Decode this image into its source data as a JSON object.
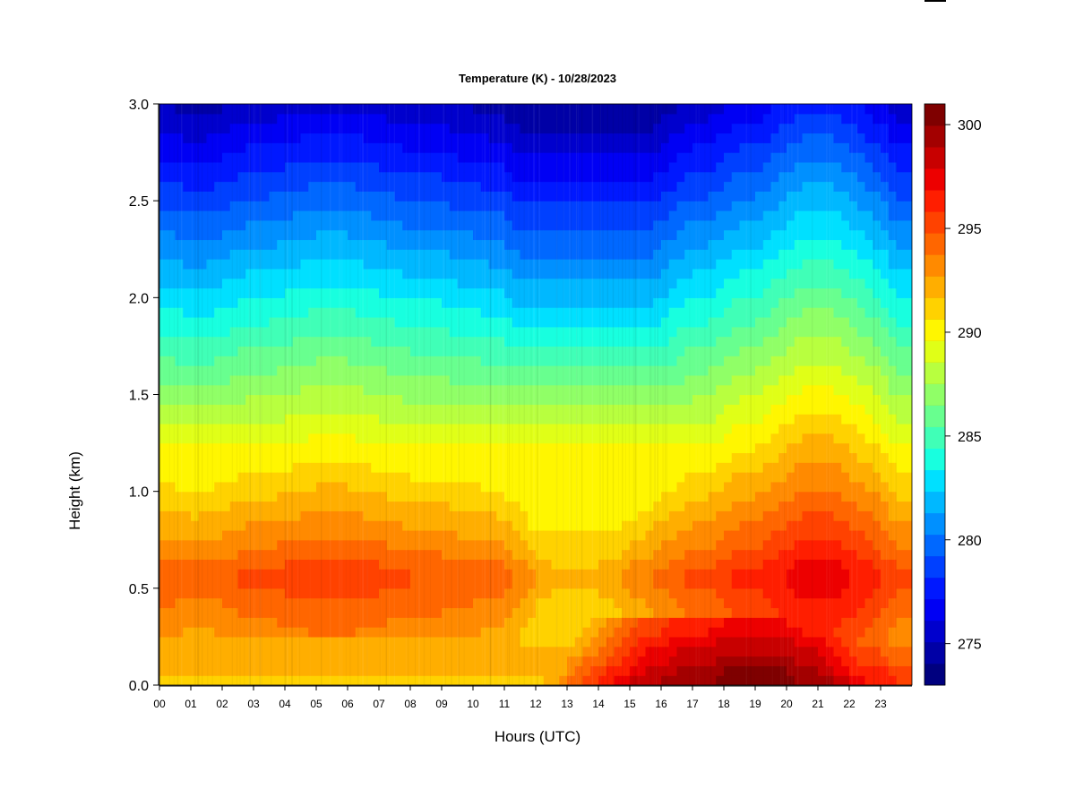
{
  "chart_data": {
    "type": "heatmap",
    "title": "Temperature (K) - 10/28/2023",
    "xlabel": "Hours (UTC)",
    "ylabel": "Height (km)",
    "xlim": [
      0,
      24
    ],
    "ylim": [
      0,
      3
    ],
    "x_ticks": [
      "00",
      "01",
      "02",
      "03",
      "04",
      "05",
      "06",
      "07",
      "08",
      "09",
      "10",
      "11",
      "12",
      "13",
      "14",
      "15",
      "16",
      "17",
      "18",
      "19",
      "20",
      "21",
      "22",
      "23"
    ],
    "y_ticks": [
      "0.0",
      "0.5",
      "1.0",
      "1.5",
      "2.0",
      "2.5",
      "3.0"
    ],
    "colorbar": {
      "min": 273,
      "max": 301,
      "ticks": [
        275,
        280,
        285,
        290,
        295,
        300
      ],
      "colors": [
        "#00007f",
        "#0000a6",
        "#0000cd",
        "#0000f4",
        "#0018ff",
        "#0040ff",
        "#0068ff",
        "#0090ff",
        "#00b8ff",
        "#00e0ff",
        "#18ffdf",
        "#40ffb7",
        "#68ff8f",
        "#90ff67",
        "#b8ff3f",
        "#e0ff17",
        "#fff600",
        "#ffd200",
        "#ffae00",
        "#ff8a00",
        "#ff6600",
        "#ff4200",
        "#ff1e00",
        "#ed0000",
        "#c80000",
        "#a30000",
        "#7f0000"
      ]
    },
    "hours": [
      0.0,
      0.5,
      1.0,
      1.5,
      2.0,
      2.5,
      3.0,
      3.5,
      4.0,
      4.5,
      5.0,
      5.5,
      6.0,
      6.5,
      7.0,
      7.5,
      8.0,
      8.5,
      9.0,
      9.5,
      10.0,
      10.5,
      11.0,
      11.5,
      12.0,
      12.5,
      13.0,
      13.5,
      14.0,
      14.5,
      15.0,
      15.5,
      16.0,
      16.5,
      17.0,
      17.5,
      18.0,
      18.5,
      19.0,
      19.5,
      20.0,
      20.5,
      21.0,
      21.5,
      22.0,
      22.5,
      23.0,
      23.5
    ],
    "surface_temp_K": [
      291,
      291,
      291,
      291,
      291,
      291,
      291,
      291,
      291,
      291,
      291,
      291,
      291,
      291,
      291,
      291,
      291,
      291,
      291,
      291,
      291,
      291,
      291,
      291,
      291,
      292,
      294,
      295,
      296,
      297,
      298,
      299,
      299,
      300,
      300,
      300,
      301,
      301,
      301,
      301,
      301,
      300,
      300,
      299,
      298,
      297,
      297,
      296
    ],
    "elevated_peak_K": [
      294.5,
      294.5,
      294.2,
      294.3,
      294.5,
      294.8,
      295.0,
      295.0,
      295.2,
      295.3,
      295.5,
      295.5,
      295.5,
      295.3,
      295.2,
      295.0,
      294.8,
      294.8,
      294.8,
      294.5,
      294.5,
      294.3,
      294.2,
      293.5,
      292.5,
      292.0,
      292.0,
      292.0,
      292.0,
      292.5,
      293.0,
      293.5,
      294.0,
      294.5,
      295.0,
      295.0,
      295.5,
      296.0,
      296.0,
      296.5,
      297.0,
      297.5,
      297.5,
      297.5,
      297.0,
      296.5,
      296.0,
      295.0
    ]
  }
}
